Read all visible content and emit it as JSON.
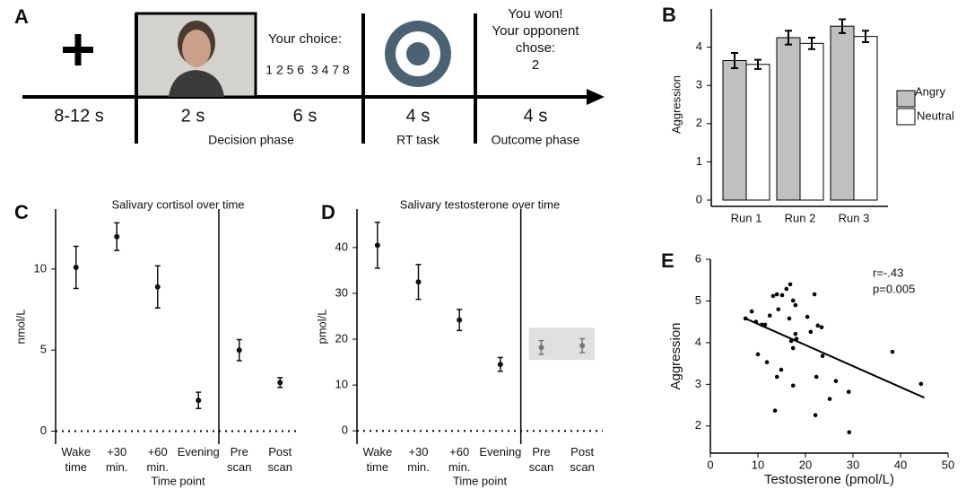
{
  "panel_a": {
    "label": "A",
    "durations": [
      "8-12 s",
      "2 s",
      "6 s",
      "4 s",
      "4 s"
    ],
    "phases": [
      "Decision phase",
      "RT task",
      "Outcome phase"
    ],
    "choice_prompt": "Your choice:",
    "choice_options": "1 2 5 6  3 4 7 8",
    "outcome": [
      "You won!",
      "Your opponent",
      "chose:",
      "2"
    ]
  },
  "chart_data": [
    {
      "type": "bar",
      "label": "B",
      "ylabel": "Aggression",
      "categories": [
        "Run 1",
        "Run 2",
        "Run 3"
      ],
      "series": [
        {
          "name": "Angry",
          "color": "#c0c0c0",
          "values": [
            3.65,
            4.25,
            4.55
          ],
          "errors": [
            0.2,
            0.18,
            0.18
          ]
        },
        {
          "name": "Neutral",
          "color": "#ffffff",
          "values": [
            3.55,
            4.1,
            4.28
          ],
          "errors": [
            0.12,
            0.15,
            0.15
          ]
        }
      ],
      "ylim": [
        0,
        5
      ],
      "yticks": [
        0,
        1,
        2,
        3,
        4
      ],
      "legend": "right"
    },
    {
      "type": "pointrange",
      "label": "C",
      "title": "Salivary cortisol over time",
      "xlabel": "Time point",
      "ylabel": "nmol/L",
      "categories": [
        "Wake time",
        "+30 min.",
        "+60 min.",
        "Evening",
        "Pre scan",
        "Post scan"
      ],
      "values": [
        10.1,
        12.0,
        8.9,
        1.9,
        5.0,
        3.0
      ],
      "errors": [
        1.3,
        0.85,
        1.3,
        0.5,
        0.65,
        0.3
      ],
      "colors": [
        "#111111",
        "#111111",
        "#111111",
        "#111111",
        "#111111",
        "#111111"
      ],
      "ylim": [
        -0.8,
        13.7
      ],
      "yticks": [
        0,
        5,
        10
      ]
    },
    {
      "type": "pointrange",
      "label": "D",
      "title": "Salivary testosterone over time",
      "xlabel": "Time point",
      "ylabel": "pmol/L",
      "categories": [
        "Wake time",
        "+30 min.",
        "+60 min.",
        "Evening",
        "Pre scan",
        "Post scan"
      ],
      "values": [
        40.5,
        32.5,
        24.2,
        14.5,
        18.2,
        18.6
      ],
      "errors": [
        5,
        3.8,
        2.3,
        1.5,
        1.5,
        1.5
      ],
      "colors": [
        "#111111",
        "#111111",
        "#111111",
        "#111111",
        "#777777",
        "#777777"
      ],
      "ylim": [
        -2.9,
        48.4
      ],
      "yticks": [
        0,
        10,
        20,
        30,
        40
      ]
    },
    {
      "type": "scatter",
      "label": "E",
      "xlabel": "Testosterone (pmol/L)",
      "ylabel": "Aggression",
      "annotations": [
        "r=-.43",
        "p=0.005"
      ],
      "x": [
        7.4,
        8.7,
        9.6,
        10.8,
        11.5,
        10.0,
        11.9,
        12.5,
        13.2,
        14.0,
        14.3,
        15.1,
        16.0,
        16.8,
        17.4,
        17.9,
        16.6,
        17.0,
        17.4,
        17.9,
        18.1,
        14.9,
        14.0,
        17.4,
        13.6,
        21.9,
        20.4,
        21.1,
        22.6,
        23.4,
        23.6,
        22.3,
        22.1,
        25.1,
        26.4,
        29.1,
        29.2,
        38.3,
        44.3
      ],
      "y": [
        4.58,
        4.75,
        4.5,
        4.43,
        4.43,
        3.72,
        3.53,
        4.65,
        5.12,
        5.16,
        4.8,
        5.14,
        5.29,
        5.4,
        5.01,
        4.9,
        4.58,
        4.04,
        3.87,
        4.21,
        4.09,
        3.35,
        3.18,
        2.97,
        2.37,
        5.16,
        4.62,
        4.26,
        4.41,
        4.37,
        3.68,
        3.18,
        2.26,
        2.65,
        3.08,
        2.82,
        1.85,
        3.78,
        3.01
      ],
      "color": "#000000",
      "fit": {
        "x": [
          7,
          45
        ],
        "y": [
          4.6,
          2.68
        ]
      },
      "xlim": [
        0,
        50
      ],
      "xticks": [
        0,
        10,
        20,
        30,
        40,
        50
      ],
      "ylim": [
        1.35,
        6
      ],
      "yticks": [
        2,
        3,
        4,
        5,
        6
      ]
    }
  ]
}
